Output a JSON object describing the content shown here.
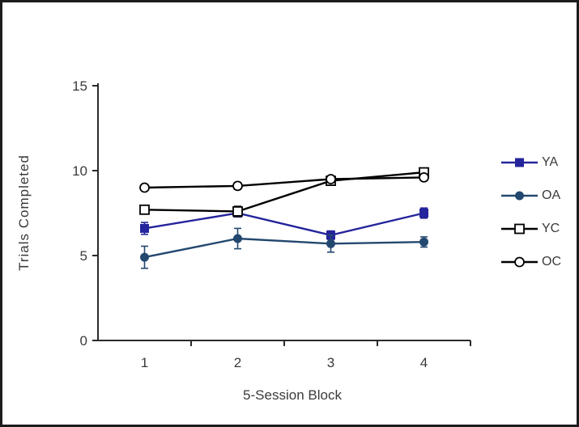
{
  "figure": {
    "background": "#ffffff",
    "border_color": "#1c1c1c"
  },
  "chart_data": {
    "type": "line",
    "title": "",
    "xlabel": "5-Session Block",
    "ylabel": "Trials Completed",
    "categories": [
      "1",
      "2",
      "3",
      "4"
    ],
    "ylim": [
      0,
      15
    ],
    "yticks": [
      0,
      5,
      10,
      15
    ],
    "grid": false,
    "legend_position": "right",
    "axis_color": "#2b2b2b",
    "text_color": "#3a3a3a",
    "series": [
      {
        "name": "YA",
        "color": "#24249c",
        "marker": "square-filled",
        "values": [
          6.6,
          7.5,
          6.2,
          7.5
        ],
        "errors": [
          0.35,
          0.15,
          0.25,
          0.3
        ]
      },
      {
        "name": "OA",
        "color": "#23486f",
        "marker": "circle-filled",
        "values": [
          4.9,
          6.0,
          5.7,
          5.8
        ],
        "errors": [
          0.65,
          0.6,
          0.5,
          0.3
        ]
      },
      {
        "name": "YC",
        "color": "#000000",
        "marker": "square-open",
        "values": [
          7.7,
          7.6,
          9.4,
          9.9
        ],
        "errors": [
          0.2,
          0.3,
          0.2,
          0.25
        ]
      },
      {
        "name": "OC",
        "color": "#000000",
        "marker": "circle-open",
        "values": [
          9.0,
          9.1,
          9.5,
          9.6
        ],
        "errors": [
          0.15,
          0.2,
          0.15,
          0.15
        ]
      }
    ]
  }
}
